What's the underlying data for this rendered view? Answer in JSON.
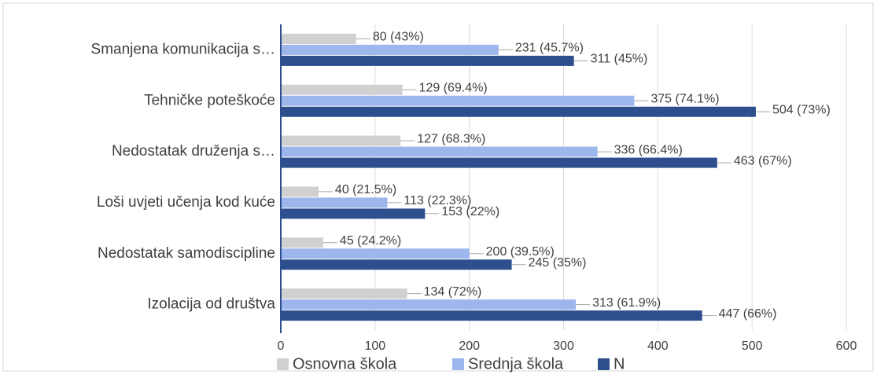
{
  "chart_data": {
    "type": "hbar",
    "categories": [
      "Smanjena komunikacija s…",
      "Tehničke poteškoće",
      "Nedostatak druženja s…",
      "Loši uvjeti učenja kod kuće",
      "Nedostatak samodiscipline",
      "Izolacija od društva"
    ],
    "series": [
      {
        "name": "Osnovna škola",
        "color": "#d0d0d0",
        "values": [
          80,
          129,
          127,
          40,
          45,
          134
        ],
        "value_labels": [
          "80 (43%)",
          "129 (69.4%)",
          "127 (68.3%)",
          "40 (21.5%)",
          "45 (24.2%)",
          "134 (72%)"
        ]
      },
      {
        "name": "Srednja škola",
        "color": "#9db6ec",
        "values": [
          231,
          375,
          336,
          113,
          200,
          313
        ],
        "value_labels": [
          "231 (45.7%)",
          "375 (74.1%)",
          "336 (66.4%)",
          "113 (22.3%)",
          "200 (39.5%)",
          "313 (61.9%)"
        ]
      },
      {
        "name": "N",
        "color": "#2e4f8e",
        "values": [
          311,
          504,
          463,
          153,
          245,
          447
        ],
        "value_labels": [
          "311 (45%)",
          "504 (73%)",
          "463 (67%)",
          "153 (22%)",
          "245 (35%)",
          "447 (66%)"
        ]
      }
    ],
    "xlim": [
      0,
      600
    ],
    "xticks": [
      0,
      100,
      200,
      300,
      400,
      500,
      600
    ],
    "grid": true,
    "legend": "bottom"
  }
}
